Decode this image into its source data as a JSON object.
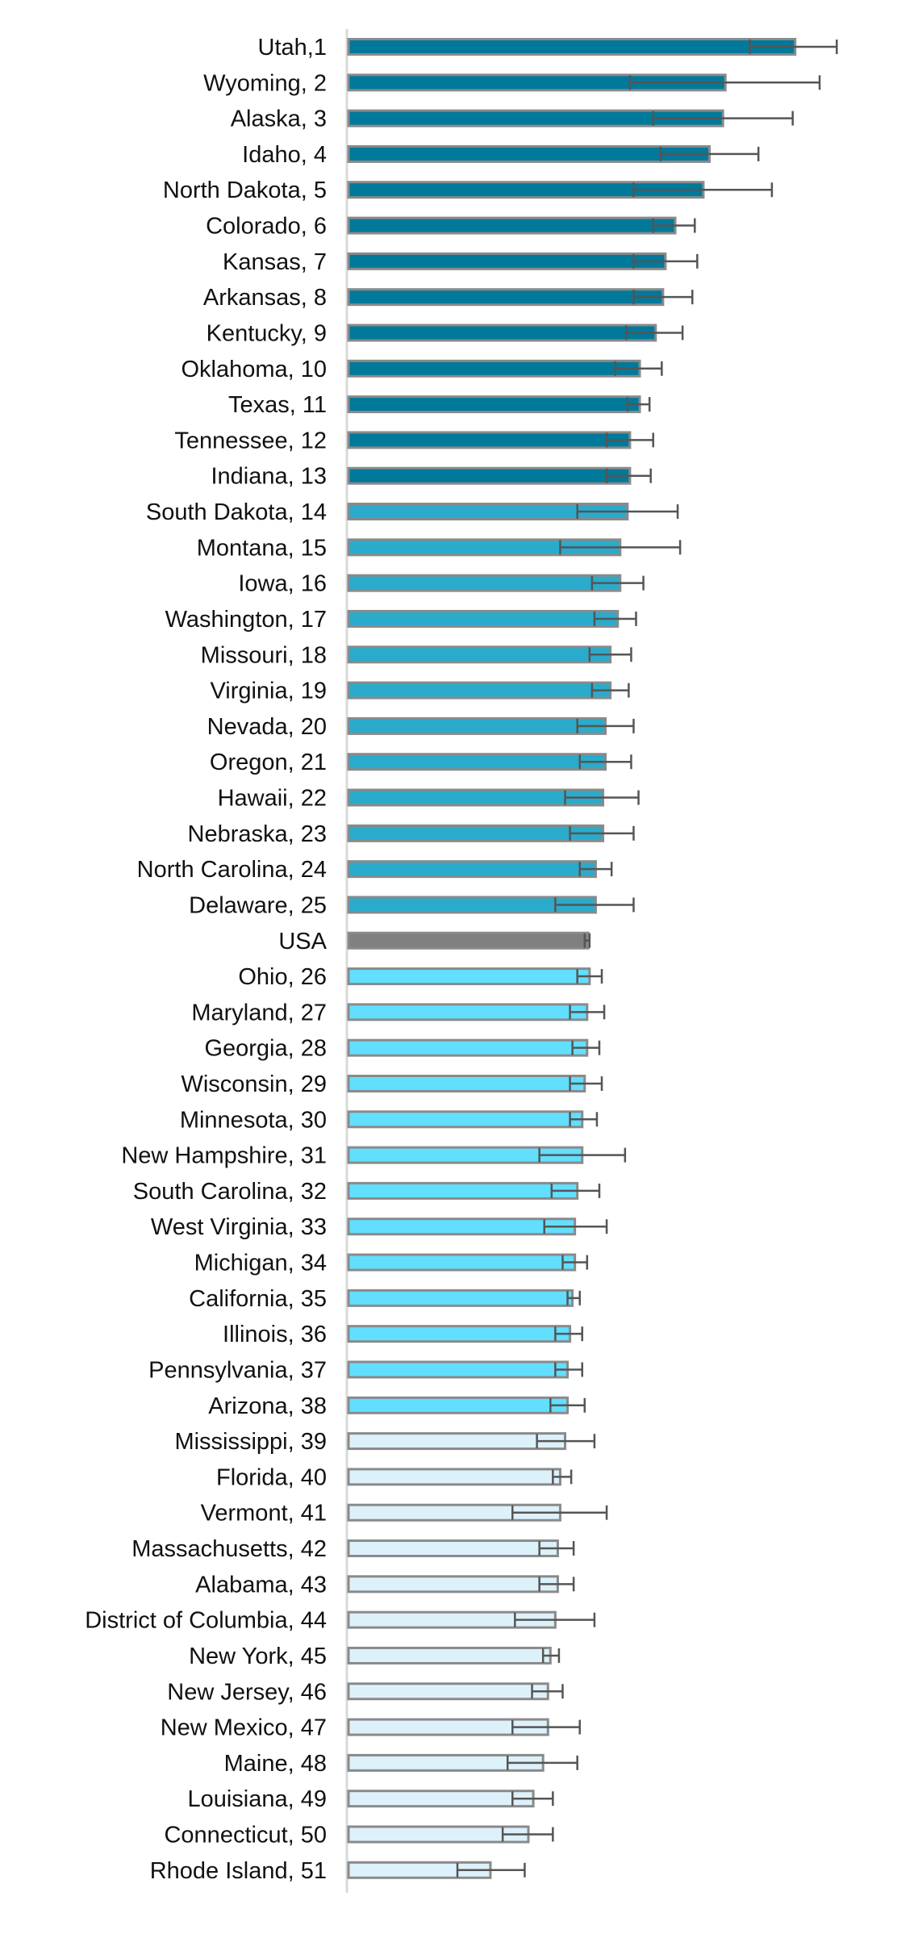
{
  "chart_data": {
    "type": "bar",
    "orientation": "horizontal",
    "title": "",
    "xlabel": "",
    "ylabel": "",
    "xlim": [
      0,
      400
    ],
    "grid": false,
    "legend": "none",
    "group_colors": {
      "top": "#00799A",
      "upper": "#2AABCC",
      "usa": "#808080",
      "lower": "#62DFFF",
      "bottom": "#DDF1FB"
    },
    "bar_outline": "#8A8A8A",
    "errorbar_color": "#555555",
    "rows": [
      {
        "label": "Utah,1",
        "value": 365,
        "err_low": 328,
        "err_high": 399,
        "group": "top"
      },
      {
        "label": "Wyoming, 2",
        "value": 308,
        "err_low": 230,
        "err_high": 385,
        "group": "top"
      },
      {
        "label": "Alaska, 3",
        "value": 306,
        "err_low": 249,
        "err_high": 363,
        "group": "top"
      },
      {
        "label": "Idaho, 4",
        "value": 295,
        "err_low": 255,
        "err_high": 335,
        "group": "top"
      },
      {
        "label": "North Dakota, 5",
        "value": 290,
        "err_low": 233,
        "err_high": 346,
        "group": "top"
      },
      {
        "label": "Colorado, 6",
        "value": 267,
        "err_low": 249,
        "err_high": 283,
        "group": "top"
      },
      {
        "label": "Kansas, 7",
        "value": 259,
        "err_low": 233,
        "err_high": 285,
        "group": "top"
      },
      {
        "label": "Arkansas, 8",
        "value": 257,
        "err_low": 233,
        "err_high": 281,
        "group": "top"
      },
      {
        "label": "Kentucky, 9",
        "value": 251,
        "err_low": 227,
        "err_high": 273,
        "group": "top"
      },
      {
        "label": "Oklahoma, 10",
        "value": 238,
        "err_low": 218,
        "err_high": 256,
        "group": "top"
      },
      {
        "label": "Texas, 11",
        "value": 238,
        "err_low": 228,
        "err_high": 246,
        "group": "top"
      },
      {
        "label": "Tennessee, 12",
        "value": 230,
        "err_low": 211,
        "err_high": 249,
        "group": "top"
      },
      {
        "label": "Indiana, 13",
        "value": 230,
        "err_low": 211,
        "err_high": 247,
        "group": "top"
      },
      {
        "label": "South Dakota, 14",
        "value": 228,
        "err_low": 187,
        "err_high": 269,
        "group": "upper"
      },
      {
        "label": "Montana, 15",
        "value": 222,
        "err_low": 173,
        "err_high": 271,
        "group": "upper"
      },
      {
        "label": "Iowa, 16",
        "value": 222,
        "err_low": 199,
        "err_high": 241,
        "group": "upper"
      },
      {
        "label": "Washington, 17",
        "value": 220,
        "err_low": 201,
        "err_high": 235,
        "group": "upper"
      },
      {
        "label": "Missouri, 18",
        "value": 214,
        "err_low": 197,
        "err_high": 231,
        "group": "upper"
      },
      {
        "label": "Virginia, 19",
        "value": 214,
        "err_low": 199,
        "err_high": 229,
        "group": "upper"
      },
      {
        "label": "Nevada, 20",
        "value": 210,
        "err_low": 187,
        "err_high": 233,
        "group": "upper"
      },
      {
        "label": "Oregon, 21",
        "value": 210,
        "err_low": 189,
        "err_high": 231,
        "group": "upper"
      },
      {
        "label": "Hawaii, 22",
        "value": 208,
        "err_low": 177,
        "err_high": 237,
        "group": "upper"
      },
      {
        "label": "Nebraska, 23",
        "value": 208,
        "err_low": 181,
        "err_high": 233,
        "group": "upper"
      },
      {
        "label": "North Carolina, 24",
        "value": 202,
        "err_low": 189,
        "err_high": 215,
        "group": "upper"
      },
      {
        "label": "Delaware, 25",
        "value": 202,
        "err_low": 169,
        "err_high": 233,
        "group": "upper"
      },
      {
        "label": "USA",
        "value": 196,
        "err_low": 193,
        "err_high": 197,
        "group": "usa"
      },
      {
        "label": "Ohio, 26",
        "value": 197,
        "err_low": 187,
        "err_high": 207,
        "group": "lower"
      },
      {
        "label": "Maryland, 27",
        "value": 195,
        "err_low": 181,
        "err_high": 209,
        "group": "lower"
      },
      {
        "label": "Georgia, 28",
        "value": 195,
        "err_low": 183,
        "err_high": 205,
        "group": "lower"
      },
      {
        "label": "Wisconsin, 29",
        "value": 193,
        "err_low": 181,
        "err_high": 207,
        "group": "lower"
      },
      {
        "label": "Minnesota, 30",
        "value": 191,
        "err_low": 181,
        "err_high": 203,
        "group": "lower"
      },
      {
        "label": "New Hampshire, 31",
        "value": 191,
        "err_low": 156,
        "err_high": 226,
        "group": "lower"
      },
      {
        "label": "South Carolina, 32",
        "value": 187,
        "err_low": 166,
        "err_high": 205,
        "group": "lower"
      },
      {
        "label": "West Virginia, 33",
        "value": 185,
        "err_low": 160,
        "err_high": 211,
        "group": "lower"
      },
      {
        "label": "Michigan, 34",
        "value": 185,
        "err_low": 175,
        "err_high": 195,
        "group": "lower"
      },
      {
        "label": "California, 35",
        "value": 183,
        "err_low": 179,
        "err_high": 189,
        "group": "lower"
      },
      {
        "label": "Illinois, 36",
        "value": 181,
        "err_low": 169,
        "err_high": 191,
        "group": "lower"
      },
      {
        "label": "Pennsylvania, 37",
        "value": 179,
        "err_low": 169,
        "err_high": 191,
        "group": "lower"
      },
      {
        "label": "Arizona, 38",
        "value": 179,
        "err_low": 165,
        "err_high": 193,
        "group": "lower"
      },
      {
        "label": "Mississippi, 39",
        "value": 177,
        "err_low": 154,
        "err_high": 201,
        "group": "bottom"
      },
      {
        "label": "Florida, 40",
        "value": 173,
        "err_low": 167,
        "err_high": 182,
        "group": "bottom"
      },
      {
        "label": "Vermont, 41",
        "value": 173,
        "err_low": 134,
        "err_high": 211,
        "group": "bottom"
      },
      {
        "label": "Massachusetts, 42",
        "value": 171,
        "err_low": 156,
        "err_high": 184,
        "group": "bottom"
      },
      {
        "label": "Alabama, 43",
        "value": 171,
        "err_low": 156,
        "err_high": 184,
        "group": "bottom"
      },
      {
        "label": "District of Columbia, 44",
        "value": 169,
        "err_low": 136,
        "err_high": 201,
        "group": "bottom"
      },
      {
        "label": "New York, 45",
        "value": 165,
        "err_low": 159,
        "err_high": 172,
        "group": "bottom"
      },
      {
        "label": "New Jersey, 46",
        "value": 163,
        "err_low": 150,
        "err_high": 175,
        "group": "bottom"
      },
      {
        "label": "New Mexico, 47",
        "value": 163,
        "err_low": 134,
        "err_high": 189,
        "group": "bottom"
      },
      {
        "label": "Maine, 48",
        "value": 159,
        "err_low": 130,
        "err_high": 187,
        "group": "bottom"
      },
      {
        "label": "Louisiana, 49",
        "value": 151,
        "err_low": 134,
        "err_high": 167,
        "group": "bottom"
      },
      {
        "label": "Connecticut, 50",
        "value": 147,
        "err_low": 126,
        "err_high": 167,
        "group": "bottom"
      },
      {
        "label": "Rhode Island, 51",
        "value": 116,
        "err_low": 89,
        "err_high": 144,
        "group": "bottom"
      }
    ]
  }
}
